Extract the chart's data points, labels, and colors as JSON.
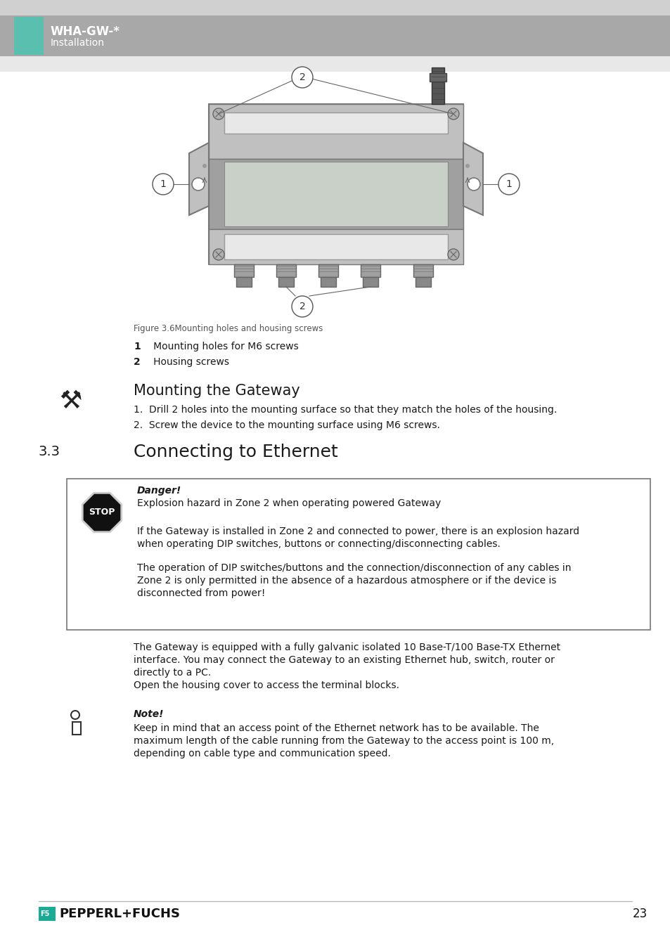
{
  "header_bg": "#a8a8a8",
  "header_bar_color": "#5bbfb0",
  "header_title": "WHA-GW-*",
  "header_subtitle": "Installation",
  "top_strip_color": "#d0d0d0",
  "body_bg": "#ffffff",
  "section_number": "3.3",
  "section_title": "Connecting to Ethernet",
  "figure_caption": "Figure 3.6Mounting holes and housing screws",
  "label1_bold": "1",
  "label1_text": "   Mounting holes for M6 screws",
  "label2_bold": "2",
  "label2_text": "   Housing screws",
  "mounting_title": "Mounting the Gateway",
  "mounting_step1": "1.  Drill 2 holes into the mounting surface so that they match the holes of the housing.",
  "mounting_step2": "2.  Screw the device to the mounting surface using M6 screws.",
  "danger_title": "Danger!",
  "danger_line1": "Explosion hazard in Zone 2 when operating powered Gateway",
  "danger_para1_l1": "If the Gateway is installed in Zone 2 and connected to power, there is an explosion hazard",
  "danger_para1_l2": "when operating DIP switches, buttons or connecting/disconnecting cables.",
  "danger_para2_l1": "The operation of DIP switches/buttons and the connection/disconnection of any cables in",
  "danger_para2_l2": "Zone 2 is only permitted in the absence of a hazardous atmosphere or if the device is",
  "danger_para2_l3": "disconnected from power!",
  "body_para_l1": "The Gateway is equipped with a fully galvanic isolated 10 Base-T/100 Base-TX Ethernet",
  "body_para_l2": "interface. You may connect the Gateway to an existing Ethernet hub, switch, router or",
  "body_para_l3": "directly to a PC.",
  "body_para_l4": "Open the housing cover to access the terminal blocks.",
  "note_title": "Note!",
  "note_para_l1": "Keep in mind that an access point of the Ethernet network has to be available. The",
  "note_para_l2": "maximum length of the cable running from the Gateway to the access point is 100 m,",
  "note_para_l3": "depending on cable type and communication speed.",
  "page_number": "23",
  "footer_logo_text": "PEPPERL+FUCHS",
  "footer_logo_bg": "#1aaa96",
  "text_color": "#1a1a1a",
  "gray_text": "#444444",
  "danger_box_border": "#555555",
  "device_body": "#c0c0c0",
  "device_dark": "#a0a0a0",
  "device_light": "#d8d8d8",
  "device_panel": "#e8e8e8"
}
